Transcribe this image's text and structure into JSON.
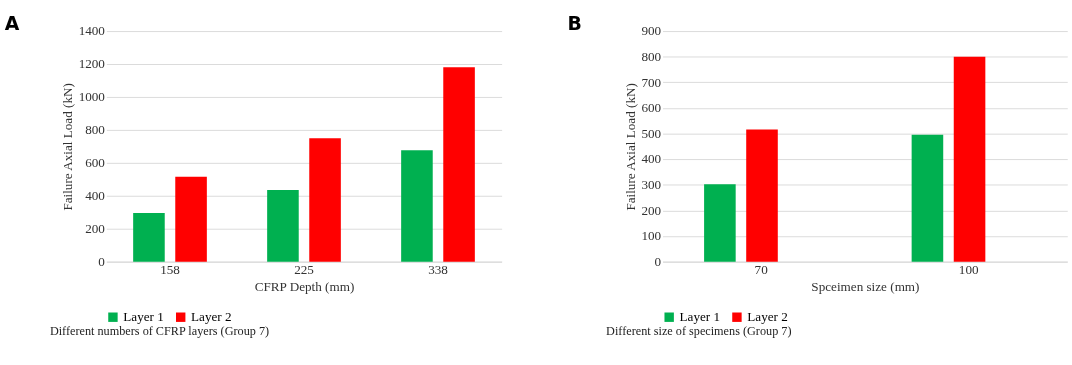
{
  "chart_data": [
    {
      "type": "bar",
      "title": "A",
      "categories": [
        "158",
        "225",
        "338"
      ],
      "xlabel": "CFRP Depth (mm)",
      "ylabel": "Failure Axial Load (kN)",
      "ylim": [
        0,
        1400
      ],
      "yticks": [
        0,
        200,
        400,
        600,
        800,
        1000,
        1200,
        1400
      ],
      "grid": "y",
      "legend": "bottom",
      "annotations": [
        "Different numbers of CFRP layers (Group 7)"
      ],
      "series": [
        {
          "name": "Layer 1",
          "color": "#00b050",
          "values": [
            295,
            435,
            677
          ]
        },
        {
          "name": "Layer 2",
          "color": "#ff0000",
          "values": [
            515,
            750,
            1180
          ]
        }
      ]
    },
    {
      "type": "bar",
      "title": "B",
      "categories": [
        "70",
        "100"
      ],
      "xlabel": "Spceimen size (mm)",
      "ylabel": "Failure Axial Load (kN)",
      "ylim": [
        0,
        900
      ],
      "yticks": [
        0,
        100,
        200,
        300,
        400,
        500,
        600,
        700,
        800,
        900
      ],
      "grid": "y",
      "legend": "bottom",
      "annotations": [
        "Different size of specimens (Group 7)"
      ],
      "series": [
        {
          "name": "Layer 1",
          "color": "#00b050",
          "values": [
            302,
            495
          ]
        },
        {
          "name": "Layer 2",
          "color": "#ff0000",
          "values": [
            516,
            800
          ]
        }
      ]
    }
  ]
}
